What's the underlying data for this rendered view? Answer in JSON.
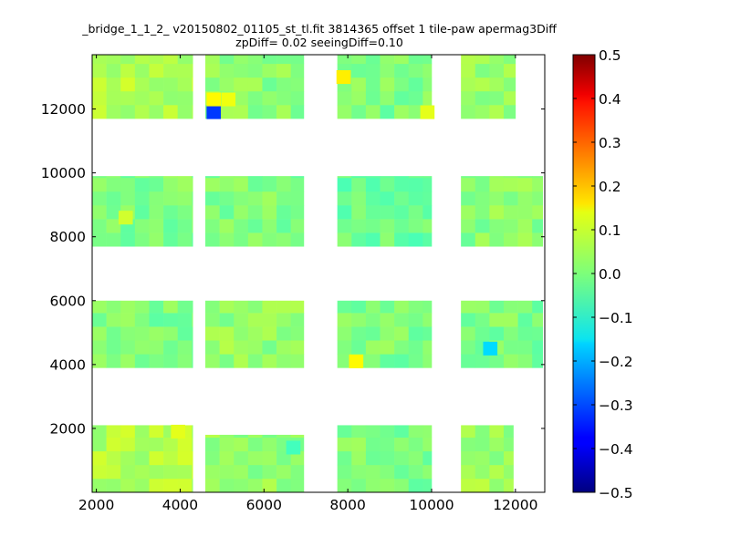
{
  "chart_data": {
    "type": "heatmap",
    "title_line1": "_bridge_1_1_2_ v20150802_01105_st_tl.fit 3814365 offset 1 tile-paw apermag3Diff",
    "title_line2": "zpDiff= 0.02 seeingDiff=0.10",
    "xlim": [
      1900,
      12700
    ],
    "ylim": [
      0,
      13700
    ],
    "xticks": [
      2000,
      4000,
      6000,
      8000,
      10000,
      12000
    ],
    "yticks": [
      2000,
      4000,
      6000,
      8000,
      10000,
      12000
    ],
    "colorbar": {
      "colormap": "jet",
      "range": [
        -0.5,
        0.5
      ],
      "ticks": [
        "0.5",
        "0.4",
        "0.3",
        "0.2",
        "0.1",
        "0.0",
        "−0.1",
        "−0.2",
        "−0.3",
        "−0.4",
        "−0.5"
      ]
    },
    "cell_size": [
      340,
      430
    ],
    "blocks": [
      {
        "x_range": [
          1900,
          4300
        ],
        "y_range": [
          0,
          2100
        ],
        "value": 0.05
      },
      {
        "x_range": [
          4600,
          6950
        ],
        "y_range": [
          0,
          1800
        ],
        "value": 0.02
      },
      {
        "x_range": [
          7750,
          10000
        ],
        "y_range": [
          0,
          2100
        ],
        "value": 0.0
      },
      {
        "x_range": [
          10700,
          11950
        ],
        "y_range": [
          0,
          2100
        ],
        "value": 0.03
      },
      {
        "x_range": [
          1900,
          4300
        ],
        "y_range": [
          3900,
          6000
        ],
        "value": 0.0
      },
      {
        "x_range": [
          4600,
          6950
        ],
        "y_range": [
          3900,
          6000
        ],
        "value": 0.02
      },
      {
        "x_range": [
          7750,
          10000
        ],
        "y_range": [
          3900,
          6000
        ],
        "value": 0.0
      },
      {
        "x_range": [
          10700,
          12650
        ],
        "y_range": [
          3900,
          6000
        ],
        "value": 0.0
      },
      {
        "x_range": [
          1900,
          4300
        ],
        "y_range": [
          7700,
          9900
        ],
        "value": 0.0
      },
      {
        "x_range": [
          4600,
          6950
        ],
        "y_range": [
          7700,
          9900
        ],
        "value": 0.0
      },
      {
        "x_range": [
          7750,
          10000
        ],
        "y_range": [
          7700,
          9900
        ],
        "value": -0.02
      },
      {
        "x_range": [
          10700,
          12650
        ],
        "y_range": [
          7700,
          9900
        ],
        "value": 0.01
      },
      {
        "x_range": [
          1900,
          4300
        ],
        "y_range": [
          11700,
          13700
        ],
        "value": 0.05
      },
      {
        "x_range": [
          4600,
          6950
        ],
        "y_range": [
          11700,
          13700
        ],
        "value": 0.01
      },
      {
        "x_range": [
          7750,
          10000
        ],
        "y_range": [
          11700,
          13700
        ],
        "value": 0.0
      },
      {
        "x_range": [
          10700,
          12000
        ],
        "y_range": [
          11700,
          13700
        ],
        "value": 0.02
      }
    ],
    "outliers": [
      {
        "x": 4800,
        "y": 11900,
        "value": -0.32
      },
      {
        "x": 4800,
        "y": 12300,
        "value": 0.13
      },
      {
        "x": 5150,
        "y": 12300,
        "value": 0.11
      },
      {
        "x": 7900,
        "y": 13000,
        "value": 0.14
      },
      {
        "x": 8200,
        "y": 4100,
        "value": 0.13
      },
      {
        "x": 11400,
        "y": 4500,
        "value": -0.16
      },
      {
        "x": 9900,
        "y": 11900,
        "value": 0.1
      },
      {
        "x": 3950,
        "y": 1900,
        "value": 0.1
      },
      {
        "x": 6700,
        "y": 1400,
        "value": -0.06
      },
      {
        "x": 2700,
        "y": 8600,
        "value": 0.08
      }
    ]
  }
}
